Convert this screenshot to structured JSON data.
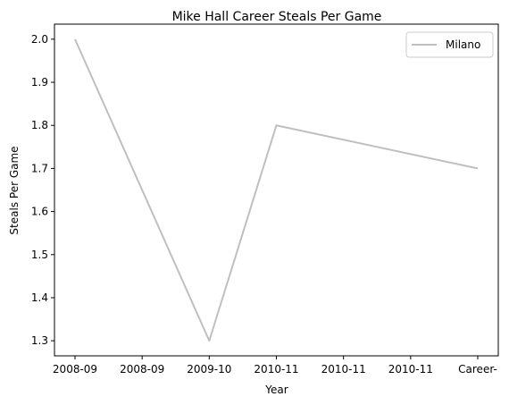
{
  "chart_data": {
    "type": "line",
    "title": "Mike Hall  Career Steals Per Game",
    "xlabel": "Year",
    "ylabel": "Steals Per Game",
    "x_tick_labels": [
      "2008-09",
      "2008-09",
      "2009-10",
      "2010-11",
      "2010-11",
      "2010-11",
      "Career-"
    ],
    "series": [
      {
        "name": "Milano",
        "color": "#bfbfbf",
        "points": [
          {
            "x": "2008-09",
            "y": 2.0
          },
          {
            "x": "2009-10",
            "y": 1.3
          },
          {
            "x": "2010-11",
            "y": 1.8
          },
          {
            "x": "Career-",
            "y": 1.7
          }
        ]
      }
    ],
    "y_ticks": [
      1.3,
      1.4,
      1.5,
      1.6,
      1.7,
      1.8,
      1.9,
      2.0
    ],
    "ylim": [
      1.265,
      2.035
    ],
    "grid": false,
    "legend_position": "upper right"
  }
}
